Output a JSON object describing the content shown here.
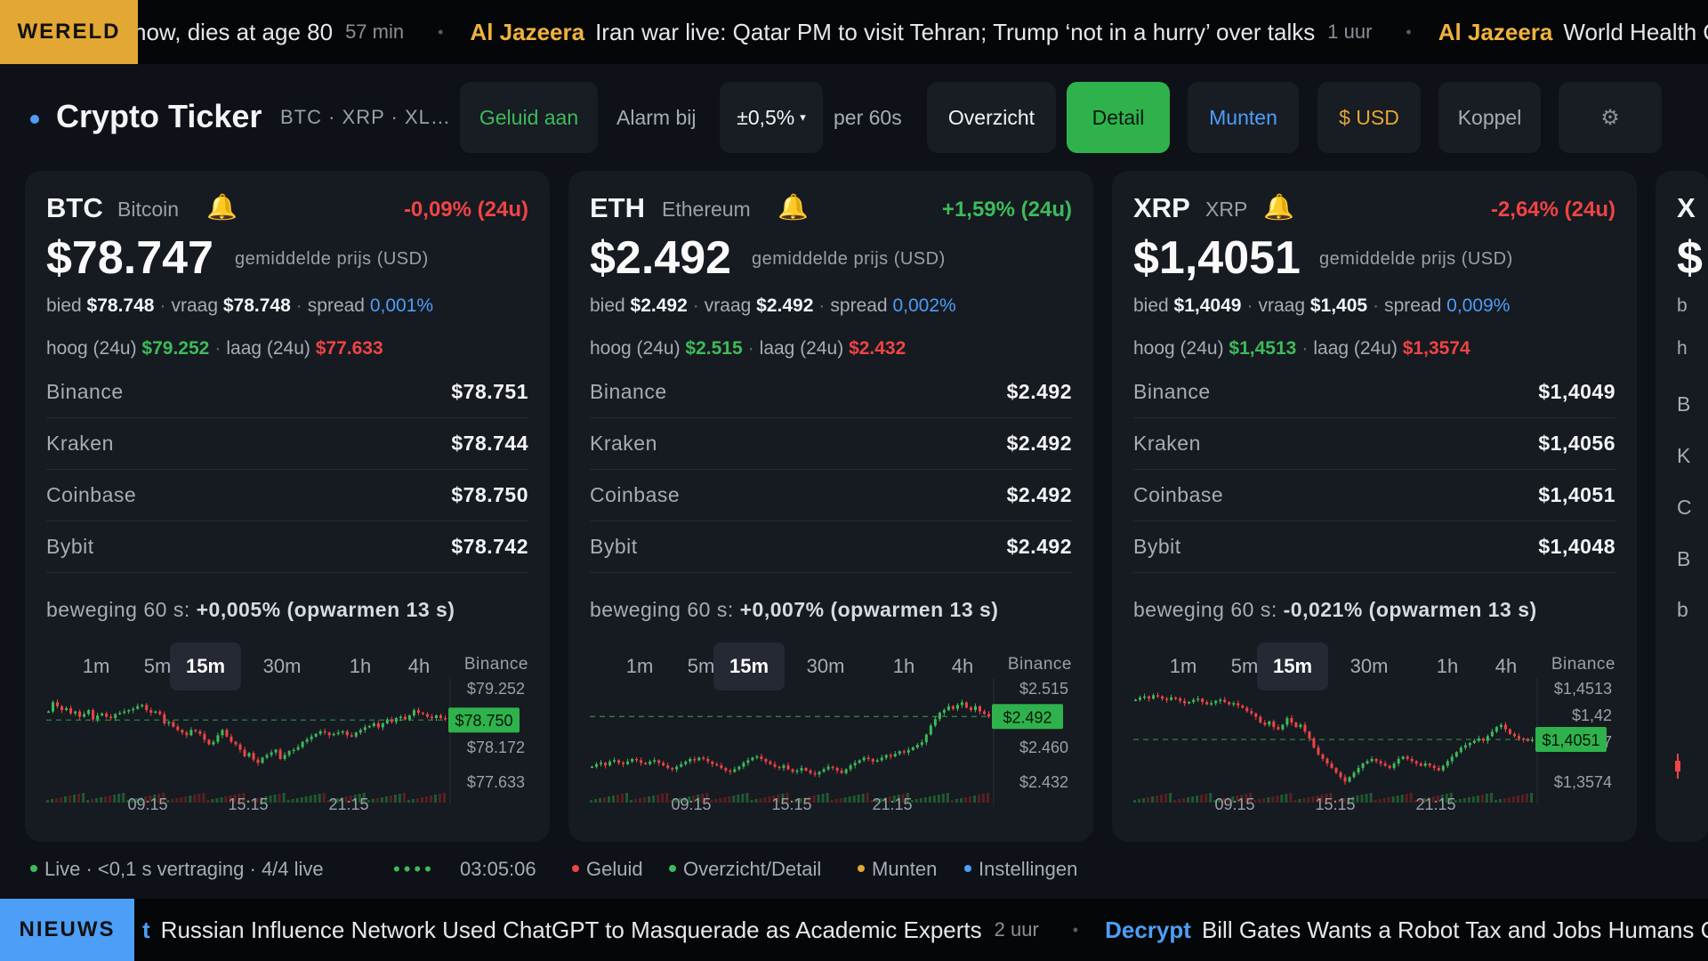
{
  "colors": {
    "up": "#3dbb5a",
    "down": "#ef4444",
    "accent": "#4d9ef7",
    "gold": "#e3a733",
    "green_btn": "#2fb24c"
  },
  "top_ticker": {
    "label": "WERELD",
    "items": [
      {
        "src": "",
        "text": "how, dies at age 80",
        "age": "57 min"
      },
      {
        "src": "Al Jazeera",
        "text": "Iran war live: Qatar PM to visit Tehran; Trump ‘not in a hurry’ over talks",
        "age": "1 uur"
      },
      {
        "src": "Al Jazeera",
        "text": "World Health O",
        "age": ""
      }
    ]
  },
  "bottom_ticker": {
    "label": "NIEUWS",
    "items": [
      {
        "src": "t",
        "text": "Russian Influence Network Used ChatGPT to Masquerade as Academic Experts",
        "age": "2 uur"
      },
      {
        "src": "Decrypt",
        "text": "Bill Gates Wants a Robot Tax and Jobs Humans Ca",
        "age": ""
      }
    ]
  },
  "toolbar": {
    "title": "Crypto Ticker",
    "coins": "BTC · XRP · XL…",
    "sound": "Geluid aan",
    "alarm_label": "Alarm bij",
    "alarm_value": "±0,5%",
    "alarm_caret": "▾",
    "per": "per 60s",
    "overview": "Overzicht",
    "detail": "Detail",
    "coins_btn": "Munten",
    "currency": "$ USD",
    "couple": "Koppel",
    "settings_icon": "gear-icon",
    "settings_glyph": "⚙"
  },
  "labels": {
    "avg": "gemiddelde prijs (USD)",
    "bid": "bied",
    "ask": "vraag",
    "spread": "spread",
    "high": "hoog (24u)",
    "low": "laag (24u)",
    "move": "beweging 60 s:",
    "bell": "🔔",
    "sep": "·"
  },
  "timeframes": [
    "1m",
    "5m",
    "15m",
    "30m",
    "1h",
    "4h"
  ],
  "active_timeframe": "15m",
  "cards": [
    {
      "symbol": "BTC",
      "name": "Bitcoin",
      "change": "-0,09% (24u)",
      "change_dir": "down",
      "price": "$78.747",
      "bid": "$78.748",
      "ask": "$78.748",
      "spread": "0,001%",
      "high": "$79.252",
      "low": "$77.633",
      "exchanges": [
        {
          "name": "Binance",
          "value": "$78.751"
        },
        {
          "name": "Kraken",
          "value": "$78.744"
        },
        {
          "name": "Coinbase",
          "value": "$78.750"
        },
        {
          "name": "Bybit",
          "value": "$78.742"
        }
      ],
      "move": "+0,005% (opwarmen 13 s)",
      "chart_exchange": "Binance",
      "chart_data": {
        "type": "candlestick",
        "y_ticks": [
          "$79.252",
          "$78.172",
          "$77.633"
        ],
        "current_label": "$78.750",
        "x_ticks": [
          "09:15",
          "15:15",
          "21:15"
        ],
        "ylim": [
          77633,
          79252
        ],
        "current": 78750,
        "closes": [
          78880,
          79020,
          78960,
          78900,
          78930,
          78850,
          78880,
          78800,
          78840,
          78900,
          78760,
          78820,
          78850,
          78800,
          78780,
          78840,
          78860,
          78880,
          78900,
          78920,
          78960,
          78980,
          78900,
          78860,
          78880,
          78840,
          78700,
          78720,
          78650,
          78600,
          78560,
          78520,
          78600,
          78580,
          78540,
          78450,
          78380,
          78420,
          78520,
          78600,
          78500,
          78420,
          78380,
          78300,
          78200,
          78250,
          78150,
          78100,
          78180,
          78220,
          78260,
          78300,
          78160,
          78220,
          78280,
          78300,
          78340,
          78420,
          78460,
          78500,
          78540,
          78580,
          78560,
          78520,
          78540,
          78560,
          78580,
          78520,
          78500,
          78560,
          78600,
          78640,
          78660,
          78700,
          78640,
          78700,
          78760,
          78720,
          78780,
          78800,
          78760,
          78820,
          78900,
          78860,
          78840,
          78800,
          78780,
          78820,
          78780,
          78760
        ]
      }
    },
    {
      "symbol": "ETH",
      "name": "Ethereum",
      "change": "+1,59% (24u)",
      "change_dir": "up",
      "price": "$2.492",
      "bid": "$2.492",
      "ask": "$2.492",
      "spread": "0,002%",
      "high": "$2.515",
      "low": "$2.432",
      "exchanges": [
        {
          "name": "Binance",
          "value": "$2.492"
        },
        {
          "name": "Kraken",
          "value": "$2.492"
        },
        {
          "name": "Coinbase",
          "value": "$2.492"
        },
        {
          "name": "Bybit",
          "value": "$2.492"
        }
      ],
      "move": "+0,007% (opwarmen 13 s)",
      "chart_exchange": "Binance",
      "chart_data": {
        "type": "candlestick",
        "y_ticks": [
          "$2.515",
          "$2.460",
          "$2.432"
        ],
        "current_label": "$2.492",
        "x_ticks": [
          "09:15",
          "15:15",
          "21:15"
        ],
        "ylim": [
          2432,
          2515
        ],
        "current": 2492,
        "closes": [
          2453,
          2455,
          2456,
          2454,
          2457,
          2458,
          2456,
          2455,
          2457,
          2459,
          2458,
          2456,
          2455,
          2457,
          2458,
          2456,
          2454,
          2452,
          2451,
          2453,
          2455,
          2457,
          2459,
          2458,
          2460,
          2459,
          2457,
          2455,
          2454,
          2452,
          2450,
          2449,
          2451,
          2453,
          2456,
          2458,
          2460,
          2461,
          2459,
          2457,
          2455,
          2453,
          2452,
          2454,
          2451,
          2449,
          2450,
          2452,
          2450,
          2448,
          2447,
          2449,
          2451,
          2453,
          2452,
          2450,
          2448,
          2451,
          2454,
          2456,
          2458,
          2460,
          2459,
          2457,
          2458,
          2460,
          2462,
          2461,
          2463,
          2465,
          2464,
          2466,
          2468,
          2470,
          2472,
          2478,
          2485,
          2490,
          2495,
          2497,
          2500,
          2498,
          2501,
          2503,
          2499,
          2497,
          2500,
          2496,
          2494,
          2492
        ]
      }
    },
    {
      "symbol": "XRP",
      "name": "XRP",
      "change": "-2,64% (24u)",
      "change_dir": "down",
      "price": "$1,4051",
      "bid": "$1,4049",
      "ask": "$1,405",
      "spread": "0,009%",
      "high": "$1,4513",
      "low": "$1,3574",
      "exchanges": [
        {
          "name": "Binance",
          "value": "$1,4049"
        },
        {
          "name": "Kraken",
          "value": "$1,4056"
        },
        {
          "name": "Coinbase",
          "value": "$1,4051"
        },
        {
          "name": "Bybit",
          "value": "$1,4048"
        }
      ],
      "move": "-0,021% (opwarmen 13 s)",
      "chart_exchange": "Binance",
      "chart_data": {
        "type": "candlestick",
        "y_ticks": [
          "$1,4513",
          "$1,42",
          "$1,3887",
          "$1,3574"
        ],
        "current_label": "$1,4051",
        "x_ticks": [
          "09:15",
          "15:15",
          "21:15"
        ],
        "ylim": [
          1.3574,
          1.4513
        ],
        "current": 1.4051,
        "closes": [
          1.44,
          1.442,
          1.443,
          1.441,
          1.444,
          1.443,
          1.441,
          1.44,
          1.442,
          1.441,
          1.439,
          1.437,
          1.438,
          1.44,
          1.441,
          1.438,
          1.436,
          1.437,
          1.439,
          1.44,
          1.438,
          1.436,
          1.437,
          1.435,
          1.433,
          1.43,
          1.428,
          1.425,
          1.42,
          1.418,
          1.421,
          1.416,
          1.414,
          1.418,
          1.424,
          1.42,
          1.416,
          1.418,
          1.412,
          1.406,
          1.398,
          1.392,
          1.388,
          1.384,
          1.38,
          1.376,
          1.372,
          1.368,
          1.372,
          1.376,
          1.38,
          1.384,
          1.386,
          1.388,
          1.386,
          1.384,
          1.382,
          1.38,
          1.384,
          1.388,
          1.39,
          1.388,
          1.386,
          1.384,
          1.382,
          1.384,
          1.382,
          1.38,
          1.378,
          1.382,
          1.386,
          1.39,
          1.394,
          1.398,
          1.4,
          1.402,
          1.404,
          1.406,
          1.404,
          1.408,
          1.412,
          1.416,
          1.418,
          1.414,
          1.41,
          1.408,
          1.406,
          1.405,
          1.404,
          1.405
        ]
      }
    }
  ],
  "peek_card": {
    "symbol": "X",
    "price": "$",
    "b": "b",
    "h": "h",
    "e1": "B",
    "e2": "K",
    "e3": "C",
    "e4": "B",
    "m": "b"
  },
  "status": {
    "live": "Live · <0,1 s vertraging · 4/4 live",
    "dots": "••••",
    "time": "03:05:06",
    "legend": [
      {
        "label": "Geluid",
        "color": "#ef4444"
      },
      {
        "label": "Overzicht/Detail",
        "color": "#3dbb5a"
      },
      {
        "label": "Munten",
        "color": "#e3a733"
      },
      {
        "label": "Instellingen",
        "color": "#4d9ef7"
      }
    ]
  }
}
